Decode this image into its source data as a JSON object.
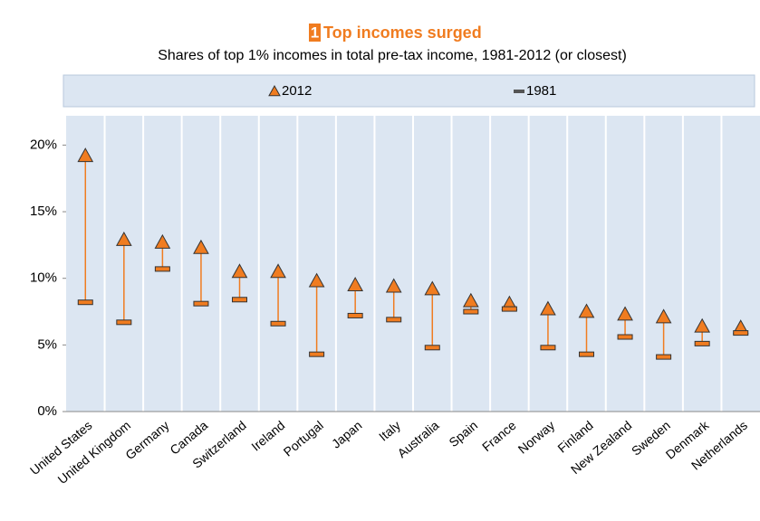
{
  "chart_data": {
    "type": "range",
    "figure_number": "1",
    "title": "Top incomes surged",
    "subtitle": "Shares of top 1% incomes in total pre-tax income, 1981-2012 (or closest)",
    "categories": [
      "United States",
      "United Kingdom",
      "Germany",
      "Canada",
      "Switzerland",
      "Ireland",
      "Portugal",
      "Japan",
      "Italy",
      "Australia",
      "Spain",
      "France",
      "Norway",
      "Finland",
      "New Zealand",
      "Sweden",
      "Denmark",
      "Netherlands"
    ],
    "series": [
      {
        "name": "2012",
        "color": "#f07c20",
        "marker": "triangle",
        "values": [
          19.2,
          12.9,
          12.7,
          12.3,
          10.5,
          10.5,
          9.8,
          9.5,
          9.4,
          9.2,
          8.3,
          8.1,
          7.7,
          7.5,
          7.3,
          7.1,
          6.4,
          6.3
        ]
      },
      {
        "name": "1981",
        "color": "#f07c20",
        "marker": "dash",
        "values": [
          8.2,
          6.7,
          10.7,
          8.1,
          8.4,
          6.6,
          4.3,
          7.2,
          6.9,
          4.8,
          7.5,
          7.7,
          4.8,
          4.3,
          5.6,
          4.1,
          5.1,
          5.9
        ]
      }
    ],
    "ylim": [
      0,
      22.2
    ],
    "yticks": [
      {
        "value": 0,
        "label": "0%"
      },
      {
        "value": 5,
        "label": "5%"
      },
      {
        "value": 10,
        "label": "10%"
      },
      {
        "value": 15,
        "label": "15%"
      },
      {
        "value": 20,
        "label": "20%"
      }
    ],
    "grid": true
  }
}
